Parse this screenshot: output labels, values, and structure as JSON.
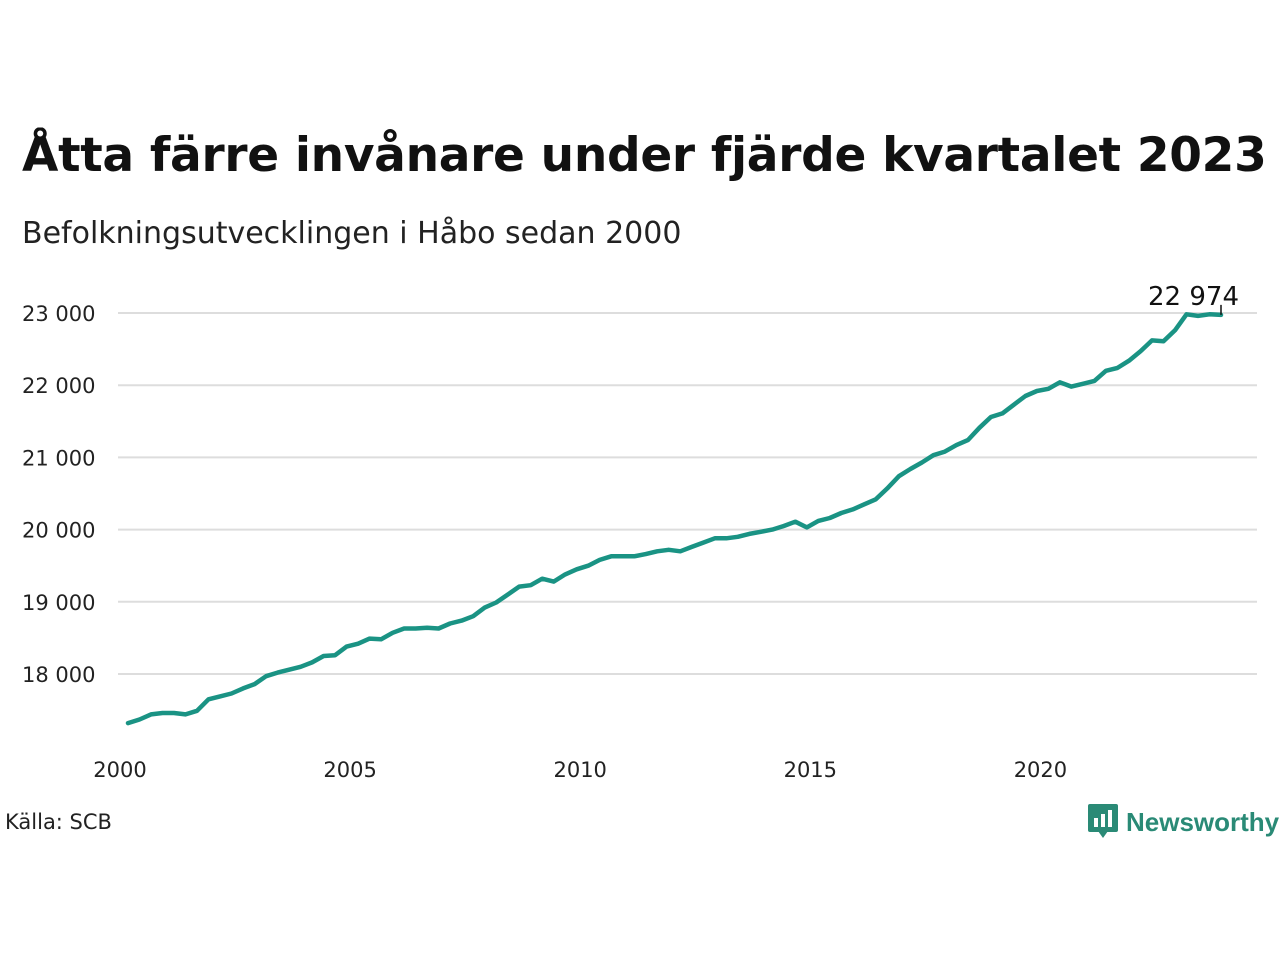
{
  "header": {
    "title": "Åtta färre invånare under fjärde kvartalet 2023",
    "subtitle": "Befolkningsutvecklingen i Håbo sedan 2000"
  },
  "footer": {
    "source": "Källa: SCB",
    "brand": "Newsworthy"
  },
  "colors": {
    "line": "#1a9384",
    "grid": "#dddddd",
    "brand": "#2a8a76",
    "text": "#111111"
  },
  "chart_data": {
    "type": "line",
    "title": "Åtta färre invånare under fjärde kvartalet 2023",
    "subtitle": "Befolkningsutvecklingen i Håbo sedan 2000",
    "xlabel": "",
    "ylabel": "",
    "x_ticks": [
      2000,
      2005,
      2010,
      2015,
      2020
    ],
    "y_ticks": [
      18000,
      19000,
      20000,
      21000,
      22000,
      23000
    ],
    "y_tick_labels": [
      "18 000",
      "19 000",
      "20 000",
      "21 000",
      "22 000",
      "23 000"
    ],
    "xlim": [
      2000,
      2024.1
    ],
    "ylim": [
      17200,
      23300
    ],
    "grid": "horizontal",
    "last_label": "22 974",
    "series": [
      {
        "x": [
          2000.0,
          2000.25,
          2000.5,
          2000.75,
          2001.0,
          2001.25,
          2001.5,
          2001.75,
          2002.0,
          2002.25,
          2002.5,
          2002.75,
          2003.0,
          2003.25,
          2003.5,
          2003.75,
          2004.0,
          2004.25,
          2004.5,
          2004.75,
          2005.0,
          2005.25,
          2005.5,
          2005.75,
          2006.0,
          2006.25,
          2006.5,
          2006.75,
          2007.0,
          2007.25,
          2007.5,
          2007.75,
          2008.0,
          2008.25,
          2008.5,
          2008.75,
          2009.0,
          2009.25,
          2009.5,
          2009.75,
          2010.0,
          2010.25,
          2010.5,
          2010.75,
          2011.0,
          2011.25,
          2011.5,
          2011.75,
          2012.0,
          2012.25,
          2012.5,
          2012.75,
          2013.0,
          2013.25,
          2013.5,
          2013.75,
          2014.0,
          2014.25,
          2014.5,
          2014.75,
          2015.0,
          2015.25,
          2015.5,
          2015.75,
          2016.0,
          2016.25,
          2016.5,
          2016.75,
          2017.0,
          2017.25,
          2017.5,
          2017.75,
          2018.0,
          2018.25,
          2018.5,
          2018.75,
          2019.0,
          2019.25,
          2019.5,
          2019.75,
          2020.0,
          2020.25,
          2020.5,
          2020.75,
          2021.0,
          2021.25,
          2021.5,
          2021.75,
          2022.0,
          2022.25,
          2022.5,
          2022.75,
          2023.0,
          2023.25,
          2023.5,
          2023.75
        ],
        "values": [
          17320,
          17370,
          17440,
          17460,
          17460,
          17440,
          17490,
          17650,
          17690,
          17730,
          17800,
          17860,
          17970,
          18020,
          18060,
          18100,
          18160,
          18250,
          18260,
          18380,
          18420,
          18490,
          18480,
          18570,
          18630,
          18630,
          18640,
          18630,
          18700,
          18740,
          18800,
          18920,
          18990,
          19100,
          19210,
          19230,
          19320,
          19280,
          19380,
          19450,
          19500,
          19580,
          19630,
          19630,
          19630,
          19660,
          19700,
          19720,
          19700,
          19760,
          19820,
          19880,
          19880,
          19900,
          19940,
          19970,
          20000,
          20050,
          20110,
          20030,
          20120,
          20160,
          20230,
          20280,
          20350,
          20420,
          20570,
          20740,
          20840,
          20930,
          21030,
          21080,
          21170,
          21240,
          21410,
          21560,
          21610,
          21730,
          21850,
          21920,
          21950,
          22040,
          21980,
          22020,
          22060,
          22200,
          22240,
          22340,
          22470,
          22620,
          22610,
          22760,
          22982,
          22960,
          22982,
          22974
        ]
      }
    ]
  }
}
